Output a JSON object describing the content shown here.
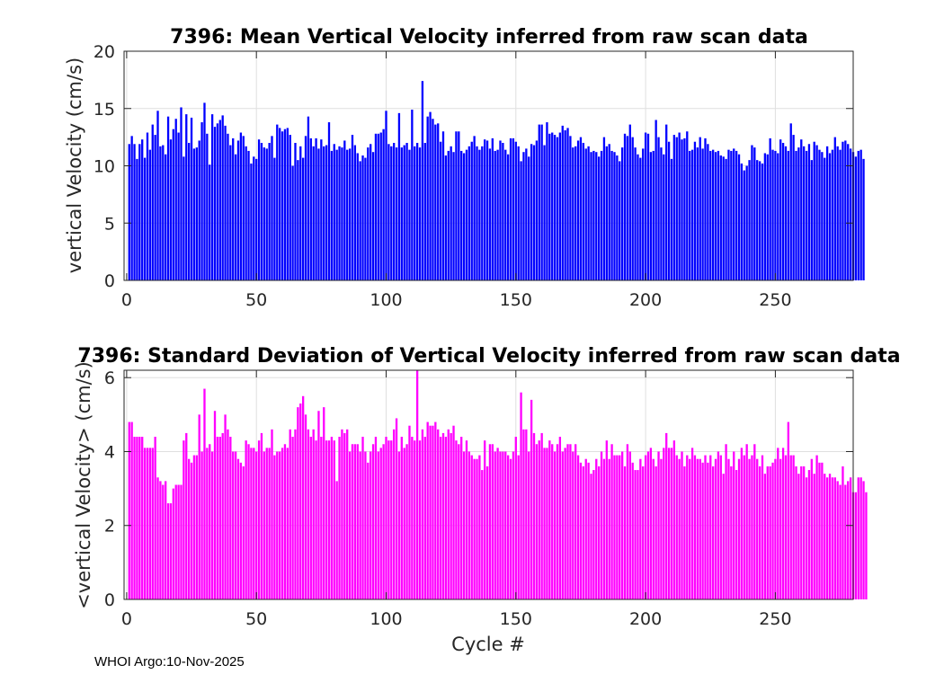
{
  "chart_data": [
    {
      "type": "bar",
      "title": "7396: Mean Vertical Velocity inferred from raw scan data",
      "xlabel": "",
      "ylabel": "vertical Velocity (cm/s)",
      "xlim": [
        -1,
        280
      ],
      "ylim": [
        0,
        20
      ],
      "xticks": [
        0,
        50,
        100,
        150,
        200,
        250
      ],
      "yticks": [
        0,
        5,
        10,
        15,
        20
      ],
      "grid": true,
      "color": "#0000ff",
      "x_start": 1,
      "values": [
        11.9,
        12.6,
        11.9,
        10.6,
        11.9,
        12.3,
        10.7,
        12.9,
        11.4,
        13.6,
        12.7,
        14.8,
        11.7,
        11.8,
        11.0,
        14.3,
        12.3,
        13.2,
        14.1,
        12.9,
        15.1,
        10.8,
        14.5,
        12.0,
        14.2,
        11.5,
        11.6,
        12.2,
        13.8,
        15.5,
        12.8,
        10.1,
        14.5,
        13.4,
        13.7,
        14.0,
        14.4,
        13.5,
        12.8,
        11.8,
        12.4,
        11.0,
        12.2,
        12.9,
        12.6,
        11.7,
        11.3,
        10.2,
        10.8,
        10.6,
        12.3,
        12.0,
        11.6,
        11.5,
        12.0,
        12.6,
        10.7,
        13.6,
        13.3,
        13.0,
        13.2,
        13.3,
        12.7,
        10.0,
        12.0,
        10.5,
        11.7,
        10.7,
        12.6,
        14.3,
        12.4,
        11.7,
        12.4,
        11.5,
        12.3,
        11.7,
        11.8,
        13.8,
        11.3,
        11.9,
        11.4,
        11.7,
        11.6,
        12.2,
        11.4,
        11.5,
        12.7,
        11.8,
        11.1,
        10.4,
        10.9,
        10.7,
        11.6,
        11.9,
        11.2,
        12.8,
        12.8,
        12.9,
        13.2,
        14.8,
        11.9,
        11.7,
        12.0,
        11.6,
        14.6,
        11.6,
        11.8,
        12.0,
        11.4,
        14.9,
        11.7,
        12.0,
        11.6,
        17.4,
        12.0,
        14.3,
        14.7,
        14.1,
        13.6,
        13.7,
        12.1,
        13.0,
        10.9,
        11.3,
        11.7,
        11.2,
        13.0,
        13.0,
        11.3,
        11.1,
        11.4,
        11.7,
        12.1,
        12.6,
        11.7,
        11.4,
        11.7,
        12.3,
        12.2,
        11.5,
        12.4,
        11.3,
        11.4,
        12.2,
        12.0,
        11.4,
        11.0,
        12.4,
        12.4,
        12.1,
        11.7,
        10.4,
        11.2,
        11.5,
        10.8,
        11.9,
        11.8,
        12.2,
        13.6,
        13.6,
        11.8,
        13.8,
        12.8,
        12.9,
        12.7,
        12.5,
        12.9,
        13.5,
        13.1,
        13.3,
        12.6,
        11.6,
        11.7,
        12.2,
        12.5,
        12.0,
        11.5,
        11.7,
        11.2,
        11.3,
        11.2,
        10.8,
        11.3,
        12.5,
        11.7,
        11.9,
        11.3,
        11.2,
        10.9,
        10.4,
        11.6,
        12.8,
        12.6,
        13.6,
        12.5,
        11.6,
        11.0,
        10.7,
        11.5,
        12.9,
        12.8,
        11.2,
        11.3,
        14.0,
        12.5,
        11.6,
        11.0,
        13.6,
        12.1,
        10.6,
        12.7,
        12.5,
        12.9,
        12.3,
        12.4,
        13.0,
        11.3,
        11.4,
        12.1,
        11.6,
        12.5,
        11.5,
        12.4,
        11.9,
        11.3,
        11.4,
        11.2,
        11.3,
        10.9,
        10.8,
        10.6,
        11.4,
        11.3,
        11.5,
        11.3,
        11.0,
        10.2,
        9.6,
        10.0,
        10.5,
        11.8,
        11.6,
        10.5,
        10.4,
        10.2,
        11.1,
        11.0,
        12.4,
        11.4,
        11.3,
        11.1,
        12.3,
        12.0,
        11.7,
        11.3,
        13.7,
        12.7,
        11.3,
        11.6,
        12.3,
        11.7,
        11.3,
        11.9,
        10.5,
        12.1,
        11.8,
        11.4,
        11.2,
        10.7,
        11.7,
        11.1,
        11.4,
        12.5,
        11.7,
        11.4,
        12.1,
        12.2,
        11.9,
        11.5,
        11.2,
        10.8,
        11.3,
        11.4,
        10.6
      ]
    },
    {
      "type": "bar",
      "title": "7396: Standard Deviation of Vertical Velocity inferred from raw scan data",
      "xlabel": "Cycle #",
      "ylabel": "<vertical Velocity> (cm/s)",
      "xlim": [
        -1,
        280
      ],
      "ylim": [
        0,
        6.2
      ],
      "xticks": [
        0,
        50,
        100,
        150,
        200,
        250
      ],
      "yticks": [
        0,
        2,
        4,
        6
      ],
      "grid": true,
      "color": "#ff00ff",
      "x_start": 1,
      "values": [
        4.8,
        4.8,
        4.4,
        4.4,
        4.4,
        4.4,
        4.1,
        4.1,
        4.1,
        4.1,
        4.4,
        3.3,
        3.2,
        3.1,
        3.2,
        2.6,
        2.6,
        3.0,
        3.1,
        3.1,
        3.1,
        4.3,
        4.5,
        3.8,
        3.7,
        3.9,
        3.9,
        5.0,
        4.0,
        5.7,
        4.1,
        4.2,
        4.0,
        5.1,
        4.4,
        4.4,
        4.5,
        5.0,
        4.6,
        4.4,
        4.0,
        4.0,
        3.8,
        3.7,
        3.6,
        4.3,
        4.2,
        4.1,
        4.1,
        4.0,
        4.3,
        4.5,
        4.0,
        4.1,
        4.1,
        4.6,
        3.9,
        4.0,
        4.0,
        4.1,
        4.2,
        4.1,
        4.6,
        4.4,
        4.6,
        5.2,
        5.3,
        5.5,
        5.0,
        4.6,
        4.4,
        4.6,
        4.3,
        5.1,
        4.4,
        5.2,
        4.3,
        4.3,
        4.4,
        4.3,
        3.2,
        4.4,
        4.6,
        4.5,
        4.6,
        4.0,
        4.2,
        4.2,
        4.2,
        4.0,
        4.4,
        4.0,
        3.7,
        4.0,
        4.2,
        4.4,
        4.0,
        4.1,
        4.2,
        4.4,
        4.3,
        4.3,
        4.6,
        4.9,
        4.0,
        4.4,
        4.1,
        4.2,
        4.7,
        4.4,
        4.3,
        6.2,
        4.3,
        4.6,
        4.4,
        4.8,
        4.7,
        4.7,
        4.8,
        4.6,
        4.4,
        4.5,
        4.4,
        4.6,
        4.5,
        4.7,
        4.3,
        4.2,
        4.4,
        4.0,
        4.3,
        4.0,
        3.9,
        3.8,
        3.8,
        3.9,
        3.5,
        4.3,
        3.6,
        4.2,
        4.2,
        4.0,
        4.1,
        4.0,
        4.0,
        4.0,
        3.9,
        3.8,
        4.0,
        4.4,
        3.9,
        5.6,
        4.6,
        4.6,
        4.0,
        5.4,
        4.5,
        4.2,
        4.3,
        4.5,
        4.1,
        4.1,
        4.3,
        4.2,
        4.0,
        4.2,
        4.4,
        4.0,
        4.1,
        4.2,
        4.2,
        4.0,
        4.2,
        3.9,
        3.7,
        3.6,
        3.8,
        3.7,
        3.4,
        3.5,
        3.8,
        3.6,
        4.0,
        3.8,
        4.3,
        3.8,
        4.2,
        3.9,
        3.9,
        3.9,
        4.0,
        3.6,
        4.2,
        4.0,
        3.7,
        3.5,
        3.5,
        3.8,
        3.6,
        3.9,
        4.0,
        4.1,
        3.8,
        3.6,
        4.0,
        3.8,
        4.1,
        4.5,
        4.1,
        4.1,
        4.3,
        3.9,
        3.8,
        4.0,
        3.6,
        3.9,
        3.8,
        4.1,
        3.9,
        3.8,
        3.8,
        3.7,
        3.9,
        3.7,
        3.9,
        3.6,
        3.8,
        4.0,
        3.9,
        3.4,
        4.2,
        3.8,
        3.6,
        4.0,
        3.5,
        3.8,
        4.1,
        3.9,
        4.2,
        3.8,
        3.9,
        4.2,
        3.8,
        3.6,
        3.9,
        3.4,
        3.6,
        3.6,
        3.7,
        3.8,
        4.1,
        3.8,
        4.1,
        3.9,
        4.8,
        3.9,
        3.9,
        3.6,
        3.4,
        3.6,
        3.6,
        3.3,
        3.5,
        3.8,
        3.4,
        3.9,
        3.7,
        3.7,
        3.4,
        3.3,
        3.4,
        3.3,
        3.3,
        3.2,
        3.1,
        3.6,
        3.1,
        3.2,
        3.3,
        2.9,
        2.9,
        3.3,
        3.3,
        3.2,
        2.9
      ]
    }
  ],
  "footer": {
    "stamp": "WHOI Argo:10-Nov-2025"
  }
}
